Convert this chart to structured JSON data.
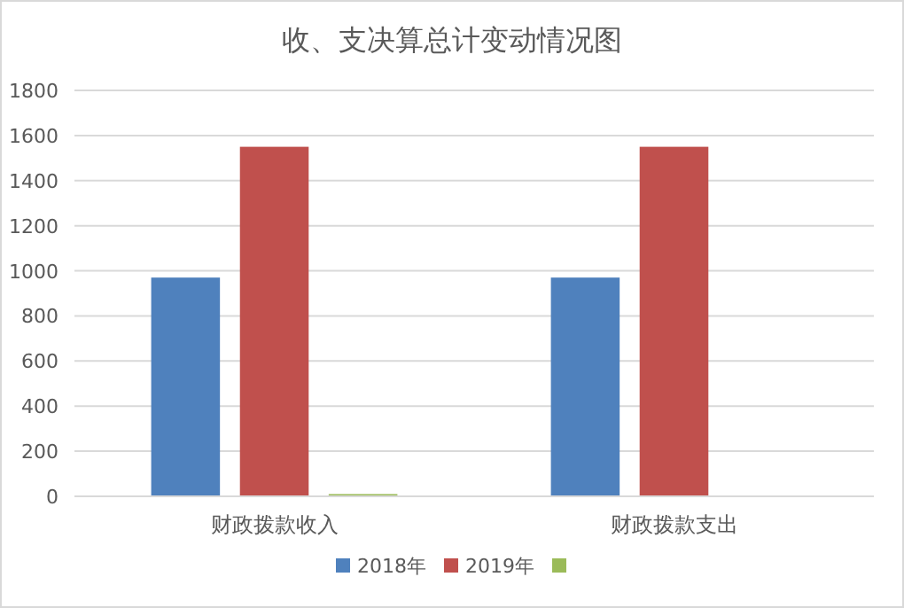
{
  "chart_data": {
    "type": "bar",
    "title": "收、支决算总计变动情况图",
    "categories": [
      "财政拨款收入",
      "财政拨款支出"
    ],
    "series": [
      {
        "name": "2018年",
        "color": "#4f81bd",
        "values": [
          970,
          970
        ]
      },
      {
        "name": "2019年",
        "color": "#c0504d",
        "values": [
          1550,
          1550
        ]
      },
      {
        "color": "#9bbb59",
        "values": [
          10,
          0
        ]
      }
    ],
    "ylim": [
      0,
      1800
    ],
    "yticks": [
      0,
      200,
      400,
      600,
      800,
      1000,
      1200,
      1400,
      1600,
      1800
    ],
    "grid": "y",
    "legend": "bottom"
  }
}
